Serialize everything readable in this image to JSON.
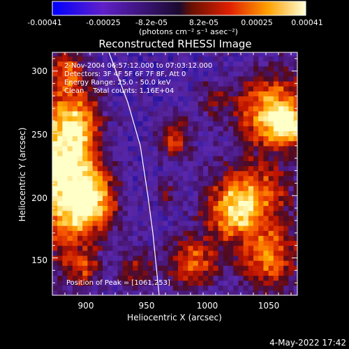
{
  "chart_data": {
    "type": "heatmap",
    "title": "Reconstructed RHESSI Image",
    "xlabel": "Heliocentric X (arcsec)",
    "ylabel": "Heliocentric Y (arcsec)",
    "xlim": [
      875,
      1070
    ],
    "ylim": [
      120,
      315
    ],
    "x_ticks": [
      900,
      950,
      1000,
      1050
    ],
    "y_ticks": [
      150,
      200,
      250,
      300
    ],
    "annotations": [
      "2-Nov-2004 06:57:12.000 to 07:03:12.000",
      "Detectors: 3F 4F 5F 6F 7F 8F, Att 0",
      "Energy Range: 25.0 - 50.0 keV",
      "Clean    Total counts: 1.16E+04"
    ],
    "peak_label": "Position of Peak = [1061,253]",
    "peak_position": [
      1061,
      253
    ],
    "colorbar": {
      "ticks": [
        "-0.00041",
        "-0.00025",
        "-8.2e-05",
        "8.2e-05",
        "0.00025",
        "0.00041"
      ],
      "unit_label": "(photons cm⁻² s⁻¹ asec⁻²)",
      "range": [
        -0.00041,
        0.00041
      ]
    },
    "limb_curve": [
      [
        920,
        315
      ],
      [
        935,
        275
      ],
      [
        945,
        240
      ],
      [
        951,
        200
      ],
      [
        955,
        170
      ],
      [
        958,
        140
      ],
      [
        960,
        120
      ]
    ],
    "blobs": [
      {
        "x": 880,
        "y": 210,
        "sx": 18,
        "sy": 45,
        "a": 1.3
      },
      {
        "x": 905,
        "y": 195,
        "sx": 14,
        "sy": 18,
        "a": 1.1
      },
      {
        "x": 893,
        "y": 255,
        "sx": 14,
        "sy": 20,
        "a": 0.8
      },
      {
        "x": 885,
        "y": 298,
        "sx": 10,
        "sy": 12,
        "a": 0.7
      },
      {
        "x": 1050,
        "y": 265,
        "sx": 22,
        "sy": 22,
        "a": 1.25
      },
      {
        "x": 1060,
        "y": 253,
        "sx": 9,
        "sy": 9,
        "a": 0.7
      },
      {
        "x": 1030,
        "y": 200,
        "sx": 22,
        "sy": 16,
        "a": 1.0
      },
      {
        "x": 1015,
        "y": 180,
        "sx": 14,
        "sy": 14,
        "a": 0.8
      },
      {
        "x": 970,
        "y": 245,
        "sx": 9,
        "sy": 12,
        "a": 0.8
      },
      {
        "x": 962,
        "y": 200,
        "sx": 6,
        "sy": 7,
        "a": 0.5
      },
      {
        "x": 985,
        "y": 145,
        "sx": 14,
        "sy": 16,
        "a": 0.9
      },
      {
        "x": 1045,
        "y": 150,
        "sx": 18,
        "sy": 20,
        "a": 1.0
      },
      {
        "x": 940,
        "y": 140,
        "sx": 10,
        "sy": 12,
        "a": 0.55
      },
      {
        "x": 900,
        "y": 140,
        "sx": 8,
        "sy": 10,
        "a": 0.6
      },
      {
        "x": 1000,
        "y": 275,
        "sx": 10,
        "sy": 10,
        "a": 0.4
      }
    ]
  },
  "footer": {
    "timestamp": "4-May-2022 17:42"
  }
}
